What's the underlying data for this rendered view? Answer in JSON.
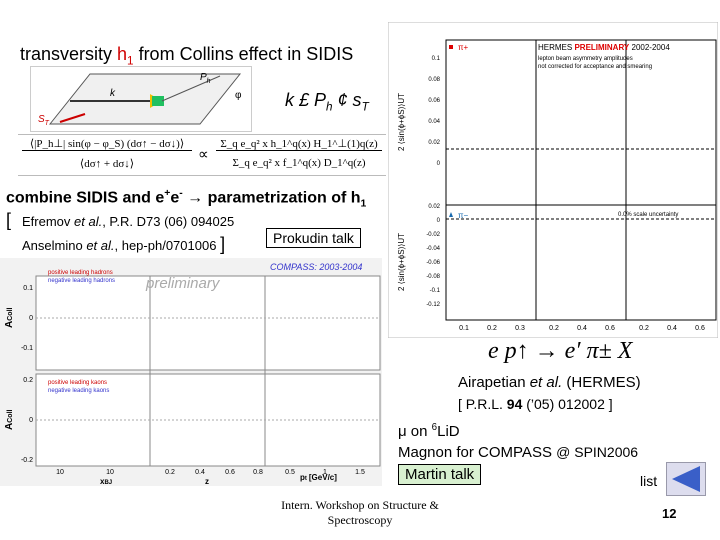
{
  "title": {
    "pre": "transversity ",
    "h": "h",
    "sub": "1",
    "post": " from Collins effect in SIDIS"
  },
  "kinematics": {
    "k": "k",
    "ph": "P",
    "ph_sub": "h",
    "st": "S",
    "st_sub": "T",
    "phi": "φ"
  },
  "cross": {
    "a": "k £ P",
    "a_sub": "h",
    "b": " ¢ s",
    "b_sub": "T"
  },
  "formula": {
    "num": "⟨|P_h⊥| sin(φ − φ_S) (dσ↑ − dσ↓)⟩",
    "den": "⟨dσ↑ + dσ↓⟩",
    "propto": "∝",
    "rnum": "Σ_q e_q² x h_1^q(x) H_1^⊥(1)q(z)",
    "rden": "Σ_q e_q² x f_1^q(x) D_1^q(z)"
  },
  "combine": {
    "pre": "combine SIDIS and e",
    "sup1": "+",
    "mid": "e",
    "sup2": "-",
    "post": " → parametrization of h",
    "sub": "1"
  },
  "refs": {
    "open": "[",
    "l1a": "Efremov ",
    "l1b": "et al.",
    "l1c": ", P.R. D73 (06) 094025",
    "l2a": "Anselmino ",
    "l2b": "et al.",
    "l2c": ", hep-ph/0701006",
    "close": "]"
  },
  "prokudin": "Prokudin talk",
  "compass_plot": {
    "preliminary": "preliminary",
    "header": "COMPASS: 2003-2004",
    "legend_top": [
      "positive leading hadrons",
      "negative leading hadrons"
    ],
    "legend_bottom": [
      "positive leading kaons",
      "negative leading kaons"
    ],
    "ylabel": "A",
    "ylabel_sub": "Coll",
    "yticks_top": [
      "0.1",
      "0",
      "-0.1"
    ],
    "yticks_bottom": [
      "0.2",
      "0",
      "-0.2"
    ],
    "xticks": [
      "10",
      "10",
      "0.2",
      "0.4",
      "0.6",
      "0.8",
      "0.5",
      "1",
      "1.5"
    ],
    "xlabels": [
      "x",
      "z",
      "p",
      "[GeV/c]"
    ],
    "xlabel_subs": [
      "BJ",
      "t"
    ]
  },
  "hermes_plot": {
    "header_a": "HERMES ",
    "header_b": "PRELIMINARY",
    "header_c": " 2002-2004",
    "note1": "lepton beam asymmetry amplitudes",
    "note2": "not corrected for acceptance and smearing",
    "scale": "0.0% scale uncertainty",
    "legend": [
      "π+",
      "π−"
    ],
    "ylabel": "2 ⟨sin(ϕ+ϕS)⟩UT",
    "yticks_top": [
      "0.1",
      "0.08",
      "0.06",
      "0.04",
      "0.02",
      "0"
    ],
    "yticks_bottom": [
      "0.02",
      "0",
      "-0.02",
      "-0.04",
      "-0.06",
      "-0.08",
      "-0.1",
      "-0.12"
    ],
    "xticks": [
      "0.1",
      "0.2",
      "0.3",
      "0.2",
      "0.4",
      "0.6",
      "0.2",
      "0.4",
      "0.6"
    ]
  },
  "reaction": "e p↑ → e′ π± X",
  "hermes_ref": {
    "a": "Airapetian ",
    "b": "et al.",
    "c": " (HERMES)",
    "d": "[ P.R.L. ",
    "e": "94",
    "f": " (’05) 012002 ]"
  },
  "compass_ref": {
    "mu": "μ on ",
    "sup": "6",
    "target": "LiD",
    "line2a": "Magnon for COMPASS ",
    "line2b": "@ SPIN2006"
  },
  "martin": "Martin  talk",
  "list": "list",
  "footer": "Intern. Workshop on Structure & Spectroscopy",
  "page": "12"
}
